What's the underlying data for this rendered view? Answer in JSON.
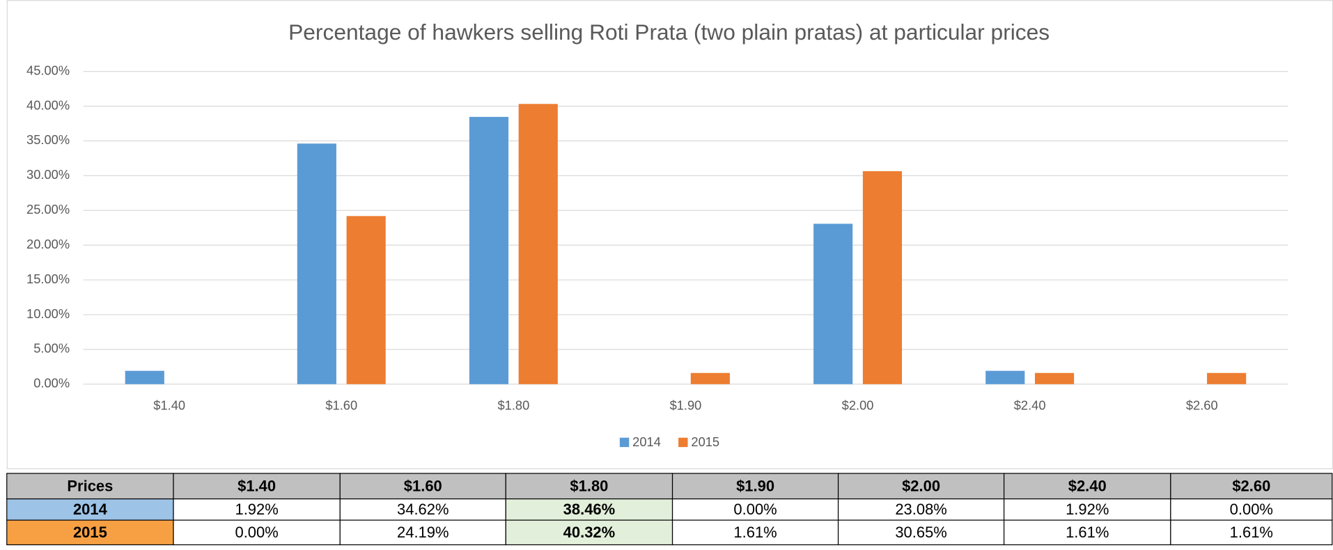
{
  "chart_data": {
    "type": "bar",
    "title": "Percentage of hawkers selling Roti Prata (two plain pratas) at particular prices",
    "categories": [
      "$1.40",
      "$1.60",
      "$1.80",
      "$1.90",
      "$2.00",
      "$2.40",
      "$2.60"
    ],
    "series": [
      {
        "name": "2014",
        "color": "#5b9bd5",
        "values": [
          1.92,
          34.62,
          38.46,
          0,
          23.08,
          1.92,
          0
        ],
        "value_labels": [
          "1.92%",
          "34.62%",
          "38.46%",
          "0.00%",
          "23.08%",
          "1.92%",
          "0.00%"
        ]
      },
      {
        "name": "2015",
        "color": "#ed7d31",
        "values": [
          0,
          24.19,
          40.32,
          1.61,
          30.65,
          1.61,
          1.61
        ],
        "value_labels": [
          "0.00%",
          "24.19%",
          "40.32%",
          "1.61%",
          "30.65%",
          "1.61%",
          "1.61%"
        ]
      }
    ],
    "ylim": [
      0,
      45
    ],
    "yticks": [
      {
        "value": 0,
        "label": "0.00%"
      },
      {
        "value": 5,
        "label": "5.00%"
      },
      {
        "value": 10,
        "label": "10.00%"
      },
      {
        "value": 15,
        "label": "15.00%"
      },
      {
        "value": 20,
        "label": "20.00%"
      },
      {
        "value": 25,
        "label": "25.00%"
      },
      {
        "value": 30,
        "label": "30.00%"
      },
      {
        "value": 35,
        "label": "35.00%"
      },
      {
        "value": 40,
        "label": "40.00%"
      },
      {
        "value": 45,
        "label": "45.00%"
      }
    ],
    "grid": true,
    "legend": "bottom"
  },
  "table": {
    "corner": "Prices"
  }
}
